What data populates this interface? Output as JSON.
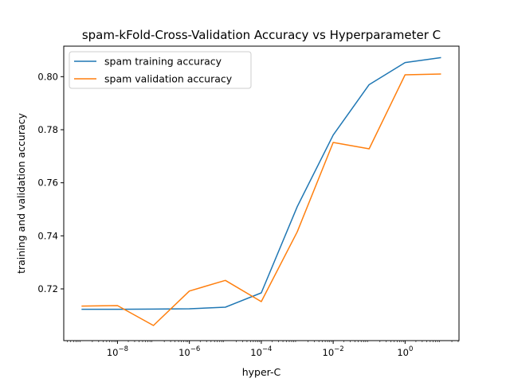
{
  "chart_data": {
    "type": "line",
    "title": "spam-kFold-Cross-Validation Accuracy vs Hyperparameter C",
    "xlabel": "hyper-C",
    "ylabel": "training and validation accuracy",
    "xscale": "log",
    "xlim": [
      3.2e-10,
      31.6
    ],
    "ylim": [
      0.7005,
      0.8115
    ],
    "x_ticks": [
      {
        "value": 1e-08,
        "base": "10",
        "exp": "−8"
      },
      {
        "value": 1e-06,
        "base": "10",
        "exp": "−6"
      },
      {
        "value": 0.0001,
        "base": "10",
        "exp": "−4"
      },
      {
        "value": 0.01,
        "base": "10",
        "exp": "−2"
      },
      {
        "value": 1,
        "base": "10",
        "exp": "0"
      }
    ],
    "y_ticks": [
      {
        "value": 0.72,
        "label": "0.72"
      },
      {
        "value": 0.74,
        "label": "0.74"
      },
      {
        "value": 0.76,
        "label": "0.76"
      },
      {
        "value": 0.78,
        "label": "0.78"
      },
      {
        "value": 0.8,
        "label": "0.80"
      }
    ],
    "grid": false,
    "legend_position": "top-left",
    "x": [
      1e-09,
      1e-08,
      1e-07,
      1e-06,
      1e-05,
      0.0001,
      0.001,
      0.01,
      0.1,
      1,
      10
    ],
    "series": [
      {
        "name": "spam training accuracy",
        "color": "#1f77b4",
        "values": [
          0.7123,
          0.7123,
          0.7124,
          0.7125,
          0.7131,
          0.7185,
          0.751,
          0.778,
          0.797,
          0.8053,
          0.8072
        ]
      },
      {
        "name": "spam validation accuracy",
        "color": "#ff7f0e",
        "values": [
          0.7135,
          0.7137,
          0.7062,
          0.7192,
          0.7232,
          0.7152,
          0.7415,
          0.7752,
          0.7728,
          0.8007,
          0.801
        ]
      }
    ]
  }
}
